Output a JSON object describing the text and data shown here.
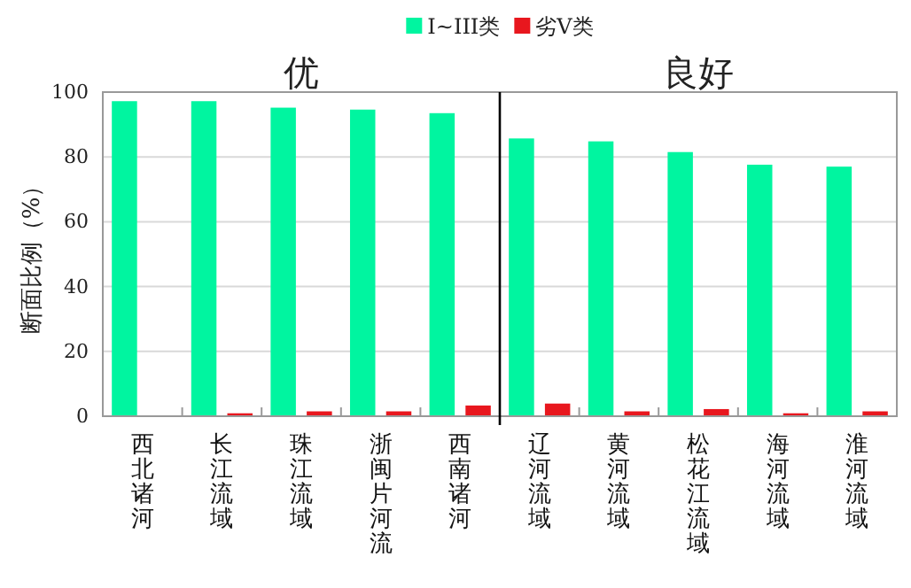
{
  "chart_data": {
    "type": "bar",
    "ylabel": "断面比例（%）",
    "categories": [
      "西北诸河",
      "长江流域",
      "珠江流域",
      "浙闽片河流",
      "西南诸河",
      "辽河流域",
      "黄河流域",
      "松花江流域",
      "海河流域",
      "淮河流域"
    ],
    "series": [
      {
        "name": "I~III类",
        "color": "#00f5a0",
        "values": [
          97.2,
          97.2,
          95.2,
          94.6,
          93.5,
          85.7,
          84.8,
          81.5,
          77.6,
          77.0
        ]
      },
      {
        "name": "劣V类",
        "color": "#e8171e",
        "values": [
          0,
          0.9,
          1.5,
          1.5,
          3.3,
          3.9,
          1.5,
          2.2,
          0.9,
          1.5
        ]
      }
    ],
    "ylim": [
      0,
      100
    ],
    "yticks": [
      0,
      20,
      40,
      60,
      80,
      100
    ],
    "grid": "y",
    "legend": "top",
    "annotations": [
      "优",
      "良好"
    ],
    "ref_lines": [
      {
        "axis": "x",
        "value": "辽河流域",
        "color": "#000000",
        "line_style": "solid"
      }
    ]
  }
}
